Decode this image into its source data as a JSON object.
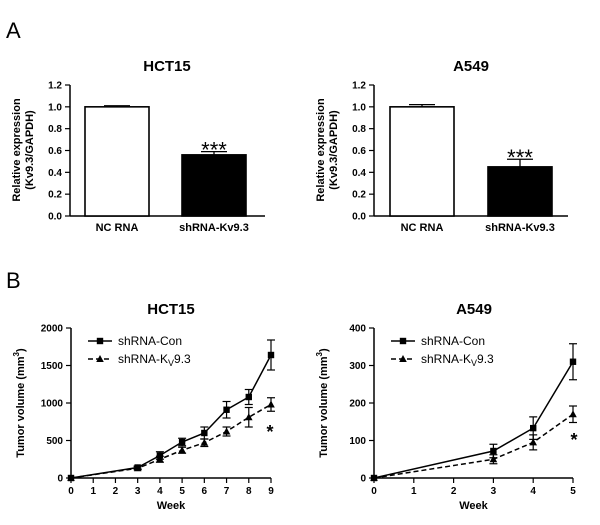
{
  "panels": {
    "a": "A",
    "b": "B"
  },
  "chart_data": [
    {
      "type": "bar",
      "panel": "A",
      "title": "HCT15",
      "ylabel_line1": "Relative expression",
      "ylabel_line2": "(Kv9.3/GAPDH)",
      "categories": [
        "NC RNA",
        "shRNA-Kv9.3"
      ],
      "values": [
        1.0,
        0.56
      ],
      "errors": [
        0.01,
        0.03
      ],
      "fills": [
        "#ffffff",
        "#000000"
      ],
      "significance": [
        "",
        "***"
      ],
      "ylim": [
        0,
        1.2
      ],
      "yticks": [
        "0.0",
        "0.2",
        "0.4",
        "0.6",
        "0.8",
        "1.0",
        "1.2"
      ]
    },
    {
      "type": "bar",
      "panel": "A",
      "title": "A549",
      "ylabel_line1": "Relative expression",
      "ylabel_line2": "(Kv9.3/GAPDH)",
      "categories": [
        "NC RNA",
        "shRNA-Kv9.3"
      ],
      "values": [
        1.0,
        0.45
      ],
      "errors": [
        0.02,
        0.07
      ],
      "fills": [
        "#ffffff",
        "#000000"
      ],
      "significance": [
        "",
        "***"
      ],
      "ylim": [
        0,
        1.2
      ],
      "yticks": [
        "0.0",
        "0.2",
        "0.4",
        "0.6",
        "0.8",
        "1.0",
        "1.2"
      ]
    },
    {
      "type": "line",
      "panel": "B",
      "title": "HCT15",
      "xlabel": "Week",
      "ylabel_main": "Tumor volume (mm",
      "ylabel_sup": "3",
      "ylabel_end": ")",
      "x": [
        0,
        3,
        4,
        5,
        6,
        7,
        8,
        9
      ],
      "xticks": [
        "0",
        "1",
        "2",
        "3",
        "4",
        "5",
        "6",
        "7",
        "8",
        "9"
      ],
      "xlim": [
        0,
        9
      ],
      "ylim": [
        0,
        2000
      ],
      "yticks": [
        "0",
        "500",
        "1000",
        "1500",
        "2000"
      ],
      "legend_position": "top-left",
      "significance": "*",
      "series": [
        {
          "name_main": "shRNA-Con",
          "name_sub": "",
          "name_end": "",
          "style": "solid",
          "marker": "square",
          "values": [
            0,
            140,
            300,
            480,
            600,
            910,
            1080,
            1640
          ],
          "errors": [
            0,
            20,
            50,
            50,
            80,
            110,
            100,
            200
          ]
        },
        {
          "name_main": "shRNA-K",
          "name_sub": "V",
          "name_end": "9.3",
          "style": "dashed",
          "marker": "triangle",
          "values": [
            0,
            130,
            250,
            370,
            470,
            620,
            810,
            980
          ],
          "errors": [
            0,
            20,
            40,
            40,
            50,
            60,
            130,
            90
          ]
        }
      ]
    },
    {
      "type": "line",
      "panel": "B",
      "title": "A549",
      "xlabel": "Week",
      "ylabel_main": "Tumor volume (mm",
      "ylabel_sup": "3",
      "ylabel_end": ")",
      "x": [
        0,
        3,
        4,
        5
      ],
      "xticks": [
        "0",
        "1",
        "2",
        "3",
        "4",
        "5"
      ],
      "xlim": [
        0,
        5
      ],
      "ylim": [
        0,
        400
      ],
      "yticks": [
        "0",
        "100",
        "200",
        "300",
        "400"
      ],
      "legend_position": "top-left",
      "significance": "*",
      "series": [
        {
          "name_main": "shRNA-Con",
          "name_sub": "",
          "name_end": "",
          "style": "solid",
          "marker": "square",
          "values": [
            0,
            72,
            133,
            310
          ],
          "errors": [
            0,
            18,
            30,
            48
          ]
        },
        {
          "name_main": "shRNA-K",
          "name_sub": "V",
          "name_end": "9.3",
          "style": "dashed",
          "marker": "triangle",
          "values": [
            0,
            50,
            95,
            170
          ],
          "errors": [
            0,
            12,
            20,
            22
          ]
        }
      ]
    }
  ]
}
